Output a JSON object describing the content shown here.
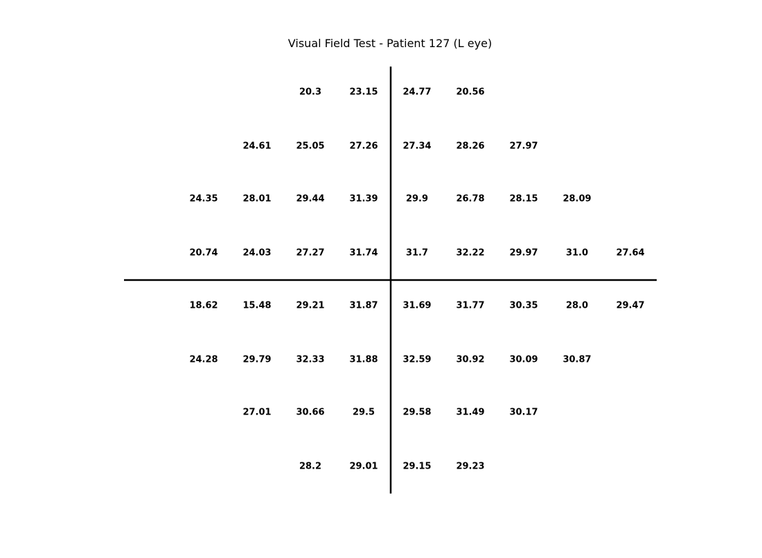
{
  "chart_data": {
    "type": "table",
    "title": "Visual Field Test - Patient 127 (L eye)",
    "grid_columns": 9,
    "rows": [
      {
        "start_col": 2,
        "values": [
          "20.3",
          "23.15",
          "24.77",
          "20.56"
        ]
      },
      {
        "start_col": 1,
        "values": [
          "24.61",
          "25.05",
          "27.26",
          "27.34",
          "28.26",
          "27.97"
        ]
      },
      {
        "start_col": 0,
        "values": [
          "24.35",
          "28.01",
          "29.44",
          "31.39",
          "29.9",
          "26.78",
          "28.15",
          "28.09"
        ]
      },
      {
        "start_col": 0,
        "values": [
          "20.74",
          "24.03",
          "27.27",
          "31.74",
          "31.7",
          "32.22",
          "29.97",
          "31.0",
          "27.64"
        ]
      },
      {
        "start_col": 0,
        "values": [
          "18.62",
          "15.48",
          "29.21",
          "31.87",
          "31.69",
          "31.77",
          "30.35",
          "28.0",
          "29.47"
        ]
      },
      {
        "start_col": 0,
        "values": [
          "24.28",
          "29.79",
          "32.33",
          "31.88",
          "32.59",
          "30.92",
          "30.09",
          "30.87"
        ]
      },
      {
        "start_col": 1,
        "values": [
          "27.01",
          "30.66",
          "29.5",
          "29.58",
          "31.49",
          "30.17"
        ]
      },
      {
        "start_col": 2,
        "values": [
          "28.2",
          "29.01",
          "29.15",
          "29.23"
        ]
      }
    ],
    "grid": false,
    "legend": "none"
  }
}
